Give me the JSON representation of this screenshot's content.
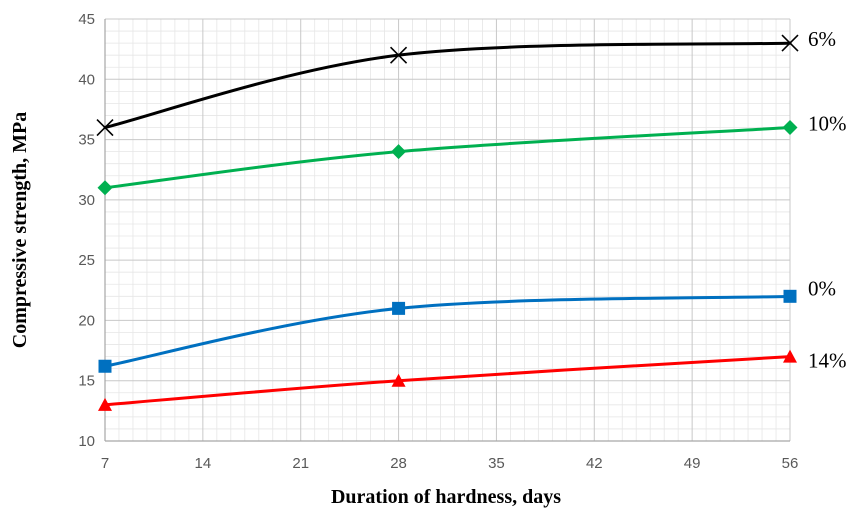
{
  "chart_data": {
    "type": "line",
    "xlabel": "Duration of hardness, days",
    "ylabel": "Compressive strength, MPa",
    "xlim": [
      7,
      56
    ],
    "ylim": [
      10,
      45
    ],
    "x_ticks": [
      7,
      14,
      21,
      28,
      35,
      42,
      49,
      56
    ],
    "y_ticks": [
      10,
      15,
      20,
      25,
      30,
      35,
      40,
      45
    ],
    "grid": true,
    "legend": "end-of-line labels",
    "x": [
      7,
      28,
      56
    ],
    "series": [
      {
        "name": "6%",
        "values": [
          36,
          42,
          43
        ],
        "color": "#000000",
        "marker": "x"
      },
      {
        "name": "10%",
        "values": [
          31,
          34,
          36
        ],
        "color": "#00b050",
        "marker": "diamond"
      },
      {
        "name": "0%",
        "values": [
          16.2,
          21,
          22
        ],
        "color": "#0070c0",
        "marker": "square"
      },
      {
        "name": "14%",
        "values": [
          13,
          15,
          17
        ],
        "color": "#ff0000",
        "marker": "triangle"
      }
    ]
  }
}
